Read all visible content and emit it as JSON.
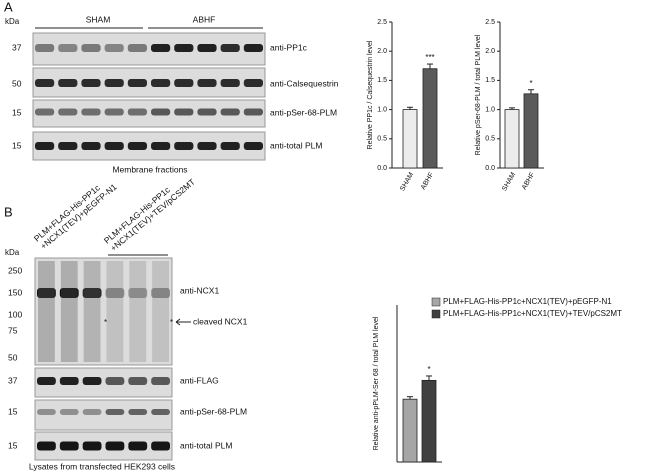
{
  "panel_a": {
    "label": "A",
    "kda": "kDa",
    "groups": [
      "SHAM",
      "ABHF"
    ],
    "markers": [
      "37",
      "50",
      "15",
      "15"
    ],
    "antibodies": [
      "anti-PP1c",
      "anti-Calsequestrin",
      "anti-pSer-68-PLM",
      "anti-total PLM"
    ],
    "caption": "Membrane fractions"
  },
  "panel_b": {
    "label": "B",
    "lane_groups": [
      [
        "PLM+FLAG-His-PP1c",
        "+NCX1(TEV)+pEGFP-N1"
      ],
      [
        "PLM+FLAG-His-PP1c",
        "+NCX1(TEV)+TEV/pCS2MT"
      ]
    ],
    "kda": "kDa",
    "markers": [
      "250",
      "150",
      "100",
      "75",
      "50",
      "37",
      "15",
      "15"
    ],
    "antibodies": [
      "anti-NCX1",
      "anti-FLAG",
      "anti-pSer-68-PLM",
      "anti-total PLM"
    ],
    "cleaved": "cleaved NCX1",
    "asterisk": "*",
    "caption": "Lysates from transfected HEK293 cells"
  },
  "chart_data": [
    {
      "type": "bar",
      "ylabel": "Relative PP1c / Calsequestrin level",
      "categories": [
        "SHAM",
        "ABHF"
      ],
      "values": [
        1.0,
        1.7
      ],
      "errors": [
        0.04,
        0.08
      ],
      "colors": [
        "#ececec",
        "#5a5a5a"
      ],
      "annotations": [
        null,
        "***"
      ],
      "ylim": [
        0,
        2.5
      ],
      "yticks": [
        {
          "value": 0,
          "label": "0.0"
        },
        0.5,
        {
          "value": 1,
          "label": "1.0"
        },
        1.5,
        {
          "value": 2,
          "label": "2.0"
        },
        2.5
      ]
    },
    {
      "type": "bar",
      "ylabel": "Relative pSer-68-PLM / total PLM level",
      "categories": [
        "SHAM",
        "ABHF"
      ],
      "values": [
        1.0,
        1.27
      ],
      "errors": [
        0.03,
        0.07
      ],
      "colors": [
        "#ececec",
        "#5a5a5a"
      ],
      "annotations": [
        null,
        "*"
      ],
      "ylim": [
        0,
        2.5
      ],
      "yticks": [
        {
          "value": 0,
          "label": "0.0"
        },
        0.5,
        {
          "value": 1,
          "label": "1.0"
        },
        1.5,
        {
          "value": 2,
          "label": "2.0"
        },
        2.5
      ]
    },
    {
      "type": "bar",
      "ylabel": "Relative anti-pPLM-Ser 68 / total PLM level",
      "series": [
        {
          "name": "PLM+FLAG-His-PP1c+NCX1(TEV)+pEGFP-N1",
          "color": "#a6a6a6",
          "values": [
            1.0
          ],
          "errors": [
            0.04
          ]
        },
        {
          "name": "PLM+FLAG-His-PP1c+NCX1(TEV)+TEV/pCS2MT",
          "color": "#404040",
          "values": [
            1.3
          ],
          "errors": [
            0.07
          ]
        }
      ],
      "annotations": [
        null,
        "*"
      ],
      "ylim": [
        0,
        2.5
      ]
    }
  ]
}
